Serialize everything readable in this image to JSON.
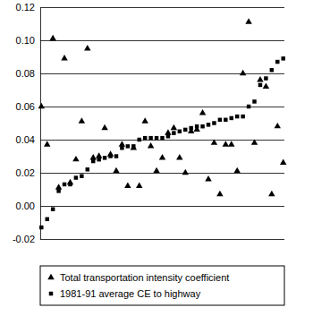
{
  "chart_data": {
    "type": "scatter",
    "categories": [
      null,
      null,
      null,
      null,
      null,
      null,
      null,
      null,
      null,
      null,
      null,
      null,
      null,
      null,
      null,
      null,
      null,
      null,
      null,
      null,
      null,
      null,
      null,
      null,
      null,
      null,
      null,
      null,
      null,
      null,
      null,
      null,
      null,
      null,
      null,
      null,
      null,
      null,
      null,
      null,
      null,
      null,
      null
    ],
    "series": [
      {
        "name": "Total transportation intensity coefficient",
        "color": "#000000",
        "marker": "triangle",
        "values": [
          0.06,
          0.037,
          0.101,
          0.011,
          0.089,
          0.014,
          0.028,
          0.051,
          0.095,
          0.029,
          0.03,
          0.047,
          0.031,
          0.021,
          0.037,
          0.012,
          0.035,
          0.012,
          0.051,
          0.036,
          0.021,
          0.029,
          0.044,
          0.047,
          0.029,
          0.02,
          0.045,
          0.046,
          0.056,
          0.016,
          0.038,
          0.007,
          0.037,
          0.037,
          0.021,
          0.08,
          0.111,
          0.038,
          0.076,
          0.072,
          0.007,
          0.048,
          0.026
        ]
      },
      {
        "name": "1981-91 average CE to highway",
        "color": "#000000",
        "marker": "square",
        "values": [
          -0.013,
          -0.008,
          -0.002,
          0.009,
          0.013,
          0.013,
          0.017,
          0.018,
          0.022,
          0.027,
          0.028,
          0.029,
          0.03,
          0.03,
          0.035,
          0.036,
          0.036,
          0.04,
          0.041,
          0.041,
          0.041,
          0.041,
          0.042,
          0.044,
          0.045,
          0.046,
          0.047,
          0.048,
          0.048,
          0.049,
          0.05,
          0.052,
          0.052,
          0.053,
          0.054,
          0.054,
          0.06,
          0.063,
          0.073,
          0.077,
          0.082,
          0.087,
          0.089
        ]
      }
    ],
    "ylim": [
      -0.02,
      0.12
    ],
    "yticks": [
      -0.02,
      {
        "value": 0,
        "label": "0.00"
      },
      0.02,
      0.04,
      0.06,
      0.08,
      {
        "value": 0.1,
        "label": "0.10"
      },
      0.12
    ],
    "grid": true,
    "legend": "bottom",
    "tick_labels": "y"
  }
}
